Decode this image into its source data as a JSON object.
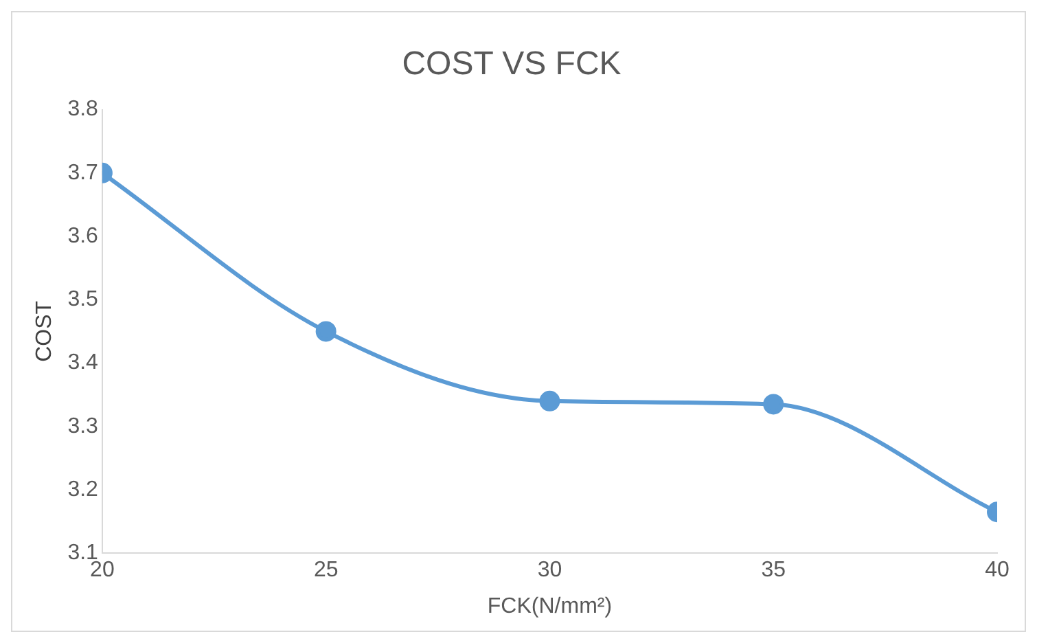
{
  "chart_data": {
    "type": "line",
    "title": "COST VS FCK",
    "xlabel": "FCK(N/mm²)",
    "ylabel": "COST",
    "x": [
      20,
      25,
      30,
      35,
      40
    ],
    "series": [
      {
        "color": "#5b9bd5",
        "values": [
          3.7,
          3.45,
          3.34,
          3.335,
          3.165
        ]
      }
    ],
    "xlim": [
      20,
      40
    ],
    "xticks": [
      20,
      25,
      30,
      35,
      40
    ],
    "ylim": [
      3.1,
      3.8
    ],
    "yticks": [
      3.1,
      3.2,
      3.3,
      3.4,
      3.5,
      3.6,
      3.7,
      3.8
    ],
    "grid": false,
    "legend": false,
    "marker": "circle",
    "line_style": "solid"
  }
}
